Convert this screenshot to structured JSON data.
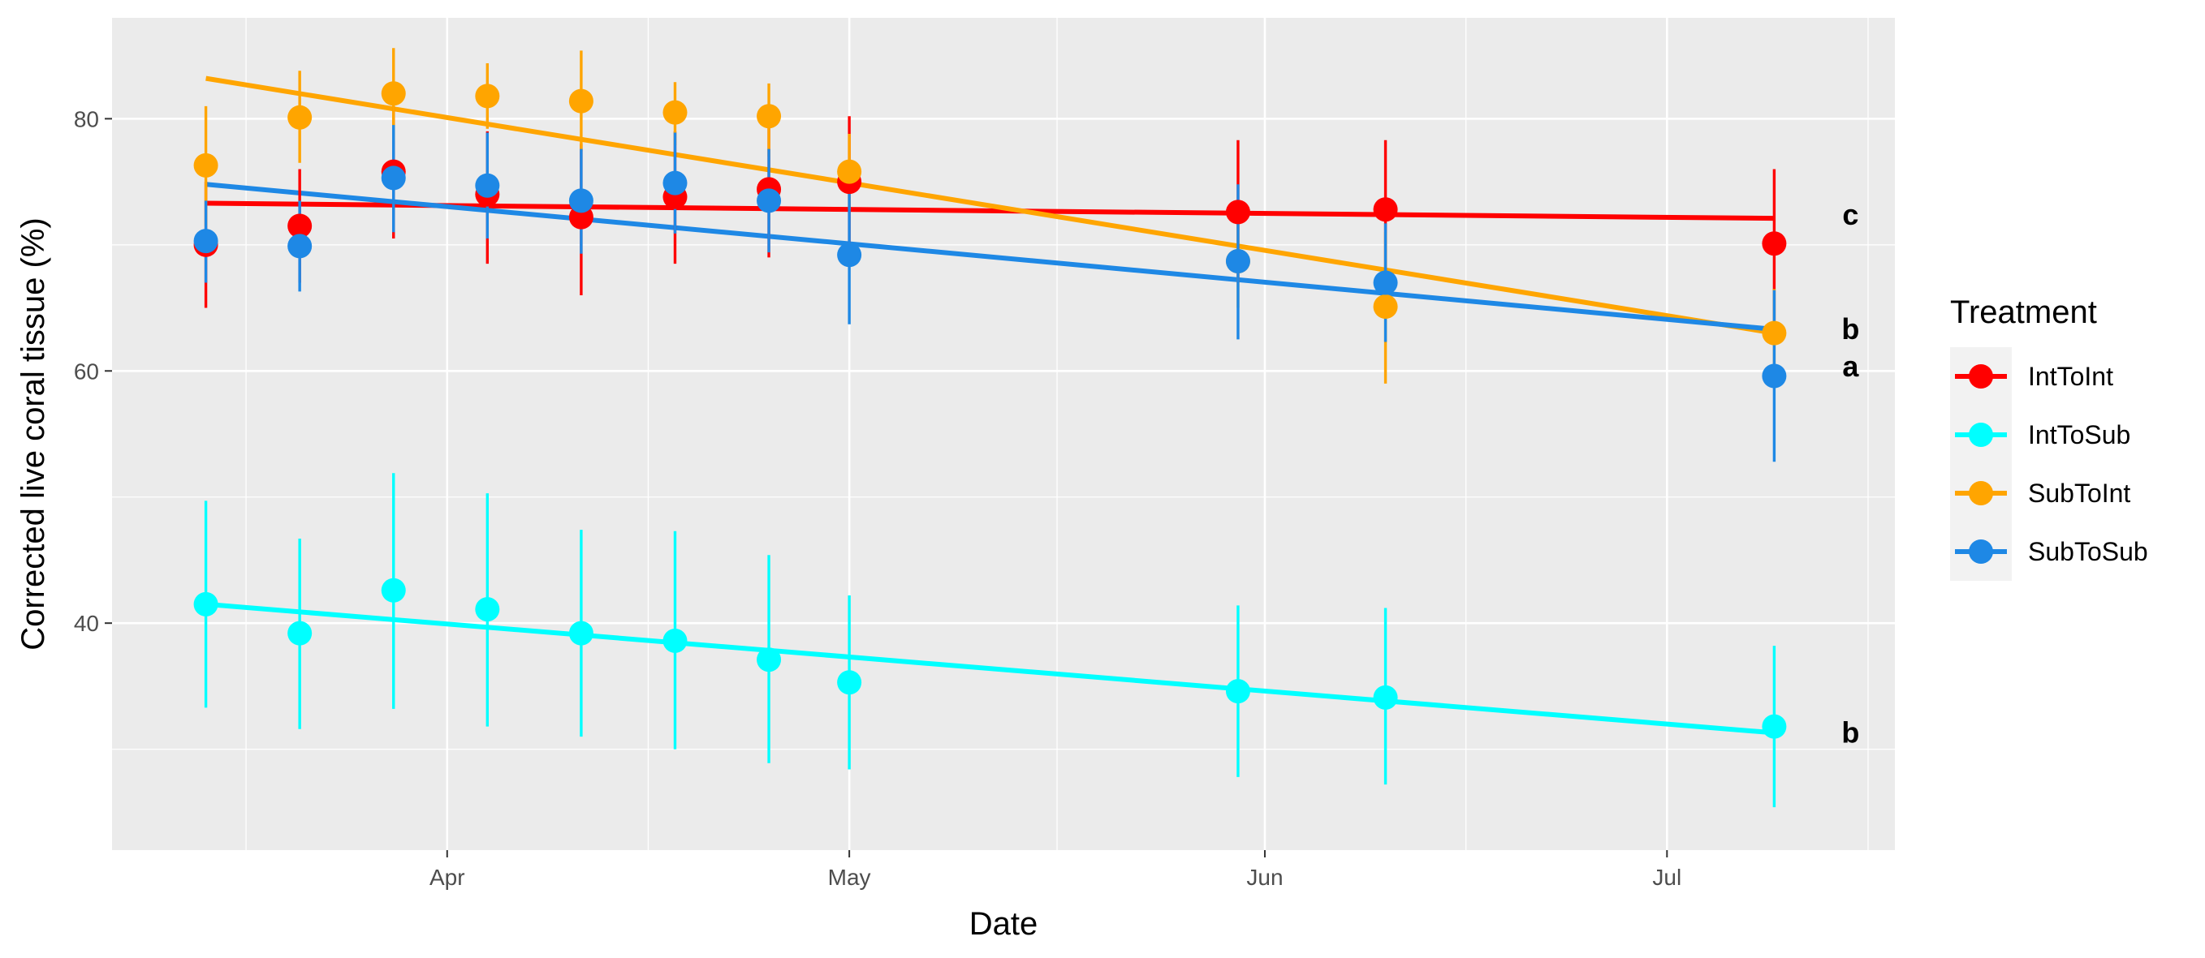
{
  "chart_data": {
    "type": "scatter",
    "title": "",
    "xlabel": "Date",
    "ylabel": "Corrected live coral tissue (%)",
    "x_axis": {
      "type": "date",
      "range": [
        "2019-03-07",
        "2019-07-18"
      ],
      "ticks": [
        {
          "date": "2019-04-01",
          "label": "Apr"
        },
        {
          "date": "2019-05-01",
          "label": "May"
        },
        {
          "date": "2019-06-01",
          "label": "Jun"
        },
        {
          "date": "2019-07-01",
          "label": "Jul"
        }
      ]
    },
    "y_axis": {
      "range": [
        22,
        88
      ],
      "ticks": [
        40,
        60,
        80
      ]
    },
    "grid": true,
    "legend": {
      "title": "Treatment",
      "position": "right"
    },
    "series": [
      {
        "name": "IntToInt",
        "color": "#ff0000",
        "points": [
          {
            "date": "2019-03-14",
            "y": 70.0,
            "lo": 65.0,
            "hi": 75.0
          },
          {
            "date": "2019-03-21",
            "y": 71.5,
            "lo": 67.0,
            "hi": 76.0
          },
          {
            "date": "2019-03-28",
            "y": 75.8,
            "lo": 70.5,
            "hi": 81.0
          },
          {
            "date": "2019-04-04",
            "y": 74.0,
            "lo": 68.5,
            "hi": 79.0
          },
          {
            "date": "2019-04-11",
            "y": 72.2,
            "lo": 66.0,
            "hi": 78.0
          },
          {
            "date": "2019-04-18",
            "y": 73.8,
            "lo": 68.5,
            "hi": 79.0
          },
          {
            "date": "2019-04-25",
            "y": 74.4,
            "lo": 69.0,
            "hi": 79.5
          },
          {
            "date": "2019-05-01",
            "y": 75.0,
            "lo": 70.0,
            "hi": 80.2
          },
          {
            "date": "2019-05-30",
            "y": 72.6,
            "lo": 67.0,
            "hi": 78.3
          },
          {
            "date": "2019-06-10",
            "y": 72.8,
            "lo": 67.0,
            "hi": 78.3
          },
          {
            "date": "2019-07-09",
            "y": 70.1,
            "lo": 64.0,
            "hi": 76.0
          }
        ],
        "trend": {
          "start": {
            "date": "2019-03-14",
            "y": 73.3
          },
          "end": {
            "date": "2019-07-09",
            "y": 72.1
          }
        },
        "annotation": "c"
      },
      {
        "name": "IntToSub",
        "color": "#00ffff",
        "points": [
          {
            "date": "2019-03-14",
            "y": 41.5,
            "lo": 33.3,
            "hi": 49.7
          },
          {
            "date": "2019-03-21",
            "y": 39.2,
            "lo": 31.6,
            "hi": 46.7
          },
          {
            "date": "2019-03-28",
            "y": 42.6,
            "lo": 33.2,
            "hi": 51.9
          },
          {
            "date": "2019-04-04",
            "y": 41.1,
            "lo": 31.8,
            "hi": 50.3
          },
          {
            "date": "2019-04-11",
            "y": 39.2,
            "lo": 31.0,
            "hi": 47.4
          },
          {
            "date": "2019-04-18",
            "y": 38.6,
            "lo": 30.0,
            "hi": 47.3
          },
          {
            "date": "2019-04-25",
            "y": 37.1,
            "lo": 28.9,
            "hi": 45.4
          },
          {
            "date": "2019-05-01",
            "y": 35.3,
            "lo": 28.4,
            "hi": 42.2
          },
          {
            "date": "2019-05-30",
            "y": 34.6,
            "lo": 27.8,
            "hi": 41.4
          },
          {
            "date": "2019-06-10",
            "y": 34.1,
            "lo": 27.2,
            "hi": 41.2
          },
          {
            "date": "2019-07-09",
            "y": 31.8,
            "lo": 25.4,
            "hi": 38.2
          }
        ],
        "trend": {
          "start": {
            "date": "2019-03-14",
            "y": 41.5
          },
          "end": {
            "date": "2019-07-09",
            "y": 31.3
          }
        },
        "annotation": "b"
      },
      {
        "name": "SubToInt",
        "color": "#ffa500",
        "points": [
          {
            "date": "2019-03-14",
            "y": 76.3,
            "lo": 71.5,
            "hi": 81.0
          },
          {
            "date": "2019-03-21",
            "y": 80.1,
            "lo": 76.5,
            "hi": 83.8
          },
          {
            "date": "2019-03-28",
            "y": 82.0,
            "lo": 78.3,
            "hi": 85.6
          },
          {
            "date": "2019-04-04",
            "y": 81.8,
            "lo": 79.2,
            "hi": 84.4
          },
          {
            "date": "2019-04-11",
            "y": 81.4,
            "lo": 77.4,
            "hi": 85.4
          },
          {
            "date": "2019-04-18",
            "y": 80.5,
            "lo": 77.9,
            "hi": 82.9
          },
          {
            "date": "2019-04-25",
            "y": 80.2,
            "lo": 77.0,
            "hi": 82.8
          },
          {
            "date": "2019-05-01",
            "y": 75.8,
            "lo": 72.8,
            "hi": 78.8
          },
          {
            "date": "2019-05-30",
            "y": 68.7,
            "lo": 65.0,
            "hi": 72.0
          },
          {
            "date": "2019-06-10",
            "y": 65.1,
            "lo": 59.0,
            "hi": 71.0
          },
          {
            "date": "2019-07-09",
            "y": 63.0,
            "lo": 59.5,
            "hi": 66.5
          }
        ],
        "trend": {
          "start": {
            "date": "2019-03-14",
            "y": 83.2
          },
          "end": {
            "date": "2019-07-09",
            "y": 63.0
          }
        },
        "annotation": "a"
      },
      {
        "name": "SubToSub",
        "color": "#1e88e5",
        "points": [
          {
            "date": "2019-03-14",
            "y": 70.3,
            "lo": 67.0,
            "hi": 73.5
          },
          {
            "date": "2019-03-21",
            "y": 69.9,
            "lo": 66.3,
            "hi": 73.5
          },
          {
            "date": "2019-03-28",
            "y": 75.3,
            "lo": 71.0,
            "hi": 79.5
          },
          {
            "date": "2019-04-04",
            "y": 74.7,
            "lo": 70.5,
            "hi": 78.9
          },
          {
            "date": "2019-04-11",
            "y": 73.5,
            "lo": 69.3,
            "hi": 77.6
          },
          {
            "date": "2019-04-18",
            "y": 74.9,
            "lo": 70.9,
            "hi": 78.9
          },
          {
            "date": "2019-04-25",
            "y": 73.5,
            "lo": 69.4,
            "hi": 77.6
          },
          {
            "date": "2019-05-01",
            "y": 69.2,
            "lo": 63.7,
            "hi": 74.7
          },
          {
            "date": "2019-05-30",
            "y": 68.7,
            "lo": 62.5,
            "hi": 74.8
          },
          {
            "date": "2019-06-10",
            "y": 67.0,
            "lo": 62.3,
            "hi": 71.7
          },
          {
            "date": "2019-07-09",
            "y": 59.6,
            "lo": 52.8,
            "hi": 66.4
          }
        ],
        "trend": {
          "start": {
            "date": "2019-03-14",
            "y": 74.8
          },
          "end": {
            "date": "2019-07-09",
            "y": 63.3
          }
        },
        "annotation": "b"
      }
    ]
  }
}
